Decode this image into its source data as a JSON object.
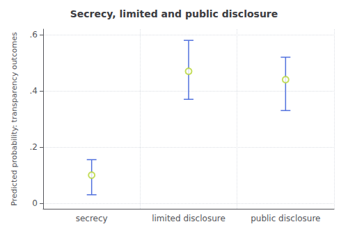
{
  "chart_data": {
    "type": "scatter",
    "title": "Secrecy, limited and public disclosure",
    "ylabel": "Predicted probability: transparency outcomes",
    "categories": [
      "secrecy",
      "limited disclosure",
      "public disclosure"
    ],
    "values": [
      0.1,
      0.47,
      0.44
    ],
    "ci_low": [
      0.03,
      0.37,
      0.33
    ],
    "ci_high": [
      0.155,
      0.58,
      0.52
    ],
    "ylim": [
      -0.02,
      0.62
    ],
    "yticks": [
      0,
      {
        "value": 0.2,
        "label": ".2"
      },
      {
        "value": 0.4,
        "label": ".4"
      },
      {
        "value": 0.6,
        "label": ".6"
      }
    ],
    "grid": true
  }
}
